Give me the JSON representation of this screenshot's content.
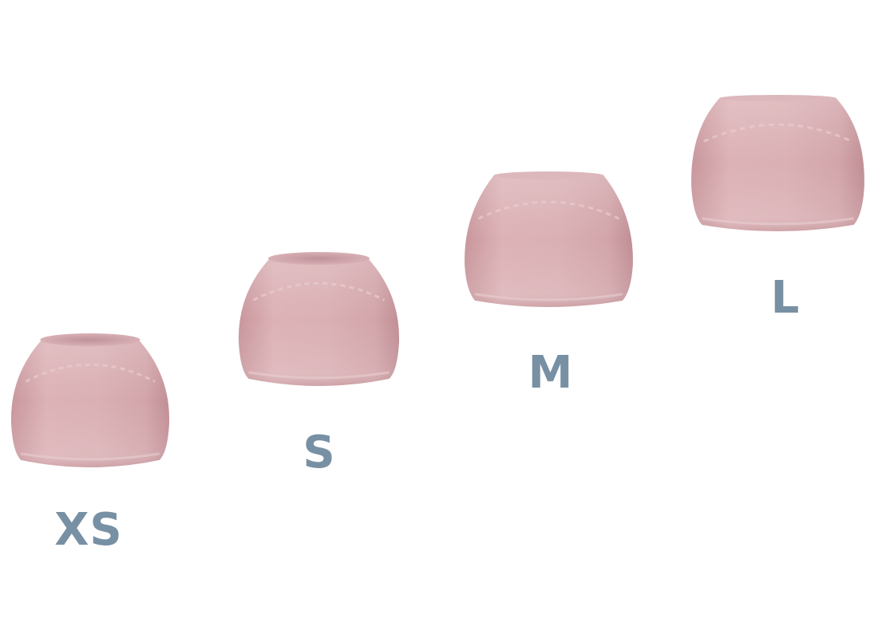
{
  "colors": {
    "background": "#ffffff",
    "tip_body": "#d8aeb2",
    "tip_highlight": "#e6c8cb",
    "tip_shadow": "#c89aa0",
    "tip_opening": "#cfa4a9",
    "label_color": "#7890a4"
  },
  "ear_tips": [
    {
      "size": "XS",
      "icon": "ear-tip-icon"
    },
    {
      "size": "S",
      "icon": "ear-tip-icon"
    },
    {
      "size": "M",
      "icon": "ear-tip-icon"
    },
    {
      "size": "L",
      "icon": "ear-tip-icon"
    }
  ]
}
